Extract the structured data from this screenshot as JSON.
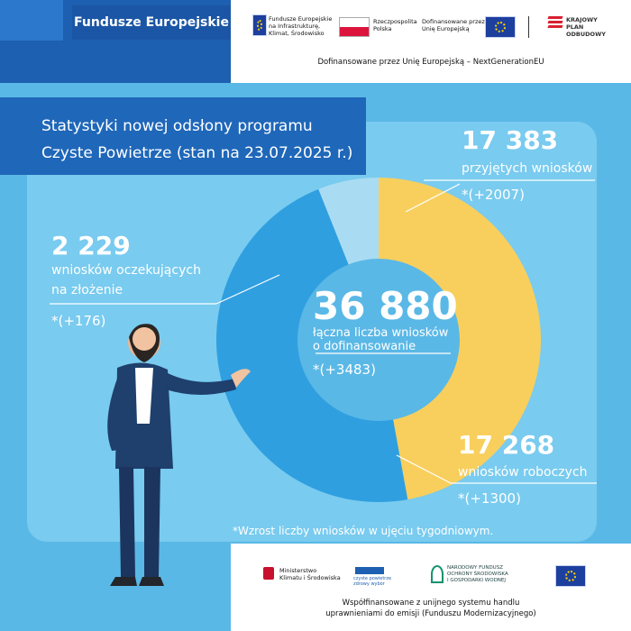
{
  "header": {
    "brand": "Fundusze Europejskie",
    "logo1": [
      "Fundusze Europejskie",
      "na Infrastrukturę,",
      "Klimat, Środowisko"
    ],
    "logo2": [
      "Rzeczpospolita",
      "Polska"
    ],
    "logo3": [
      "Dofinansowane przez",
      "Unię Europejską"
    ],
    "logo4": [
      "KRAJOWY",
      "PLAN",
      "ODBUDOWY"
    ],
    "caption": "Dofinansowane przez Unię Europejską – NextGenerationEU"
  },
  "title": {
    "line1": "Statystyki nowej odsłony programu",
    "line2": "Czyste Powietrze (stan na 23.07.2025 r.)"
  },
  "chart_data": {
    "type": "pie",
    "variant": "donut",
    "total": {
      "value": "36 880",
      "label_line1": "łączna liczba wniosków",
      "label_line2": "o dofinansowanie",
      "change": "*(+3483)"
    },
    "slices": [
      {
        "value": 17383,
        "display": "17 383",
        "label": "przyjętych wniosków",
        "change": "*(+2007)",
        "color": "#f8cf5d"
      },
      {
        "value": 17268,
        "display": "17 268",
        "label": "wniosków roboczych",
        "change": "*(+1300)",
        "color": "#2f9fe0"
      },
      {
        "value": 2229,
        "display": "2 229",
        "label_line1": "wniosków oczekujących",
        "label_line2": "na złożenie",
        "change": "*(+176)",
        "color": "#a9dcf2"
      }
    ]
  },
  "footnote": "*Wzrost liczby wniosków w ujęciu tygodniowym.",
  "footer": {
    "logo1": [
      "Ministerstwo",
      "Klimatu i Środowiska"
    ],
    "logo2": [
      "czyste powietrze",
      "zdrowy wybór"
    ],
    "logo3": [
      "NARODOWY FUNDUSZ",
      "OCHRONY ŚRODOWISKA",
      "I GOSPODARKI WODNEJ"
    ],
    "caption_line1": "Współfinansowane z unijnego systemu handlu",
    "caption_line2": "uprawnieniami do emisji (Funduszu Modernizacyjnego)"
  },
  "colors": {
    "navy": "#1d5fb0",
    "title_bg": "#1f67b9",
    "background": "#5ab8e6",
    "panel": "#79cbef"
  }
}
